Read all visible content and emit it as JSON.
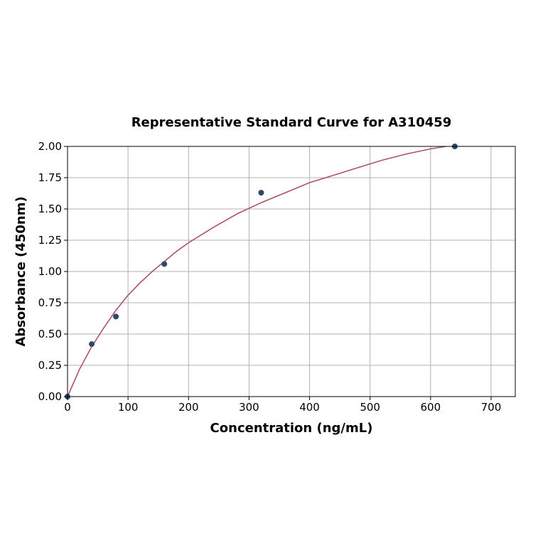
{
  "chart_data": {
    "type": "scatter",
    "title": "Representative Standard Curve for A310459",
    "xlabel": "Concentration (ng/mL)",
    "ylabel": "Absorbance (450nm)",
    "xlim": [
      0,
      740
    ],
    "ylim": [
      0,
      2.0
    ],
    "xticks": [
      0,
      100,
      200,
      300,
      400,
      500,
      600,
      700
    ],
    "yticks": [
      0.0,
      0.25,
      0.5,
      0.75,
      1.0,
      1.25,
      1.5,
      1.75,
      2.0
    ],
    "xtick_labels": [
      "0",
      "100",
      "200",
      "300",
      "400",
      "500",
      "600",
      "700"
    ],
    "ytick_labels": [
      "0.00",
      "0.25",
      "0.50",
      "0.75",
      "1.00",
      "1.25",
      "1.50",
      "1.75",
      "2.00"
    ],
    "grid": true,
    "points": {
      "x": [
        0,
        40,
        80,
        160,
        320,
        640
      ],
      "y": [
        0.0,
        0.42,
        0.64,
        1.06,
        1.63,
        2.0
      ]
    },
    "fit_curve": {
      "x": [
        0,
        20,
        40,
        60,
        80,
        100,
        120,
        140,
        160,
        180,
        200,
        240,
        280,
        320,
        360,
        400,
        440,
        480,
        520,
        560,
        600,
        625
      ],
      "y": [
        0.0,
        0.22,
        0.4,
        0.55,
        0.69,
        0.81,
        0.91,
        1.0,
        1.08,
        1.16,
        1.23,
        1.35,
        1.46,
        1.55,
        1.63,
        1.71,
        1.77,
        1.83,
        1.89,
        1.94,
        1.98,
        2.0
      ]
    },
    "colors": {
      "points": "#2b4a6b",
      "curve": "#b0506e",
      "grid": "#b0b0b0"
    }
  }
}
